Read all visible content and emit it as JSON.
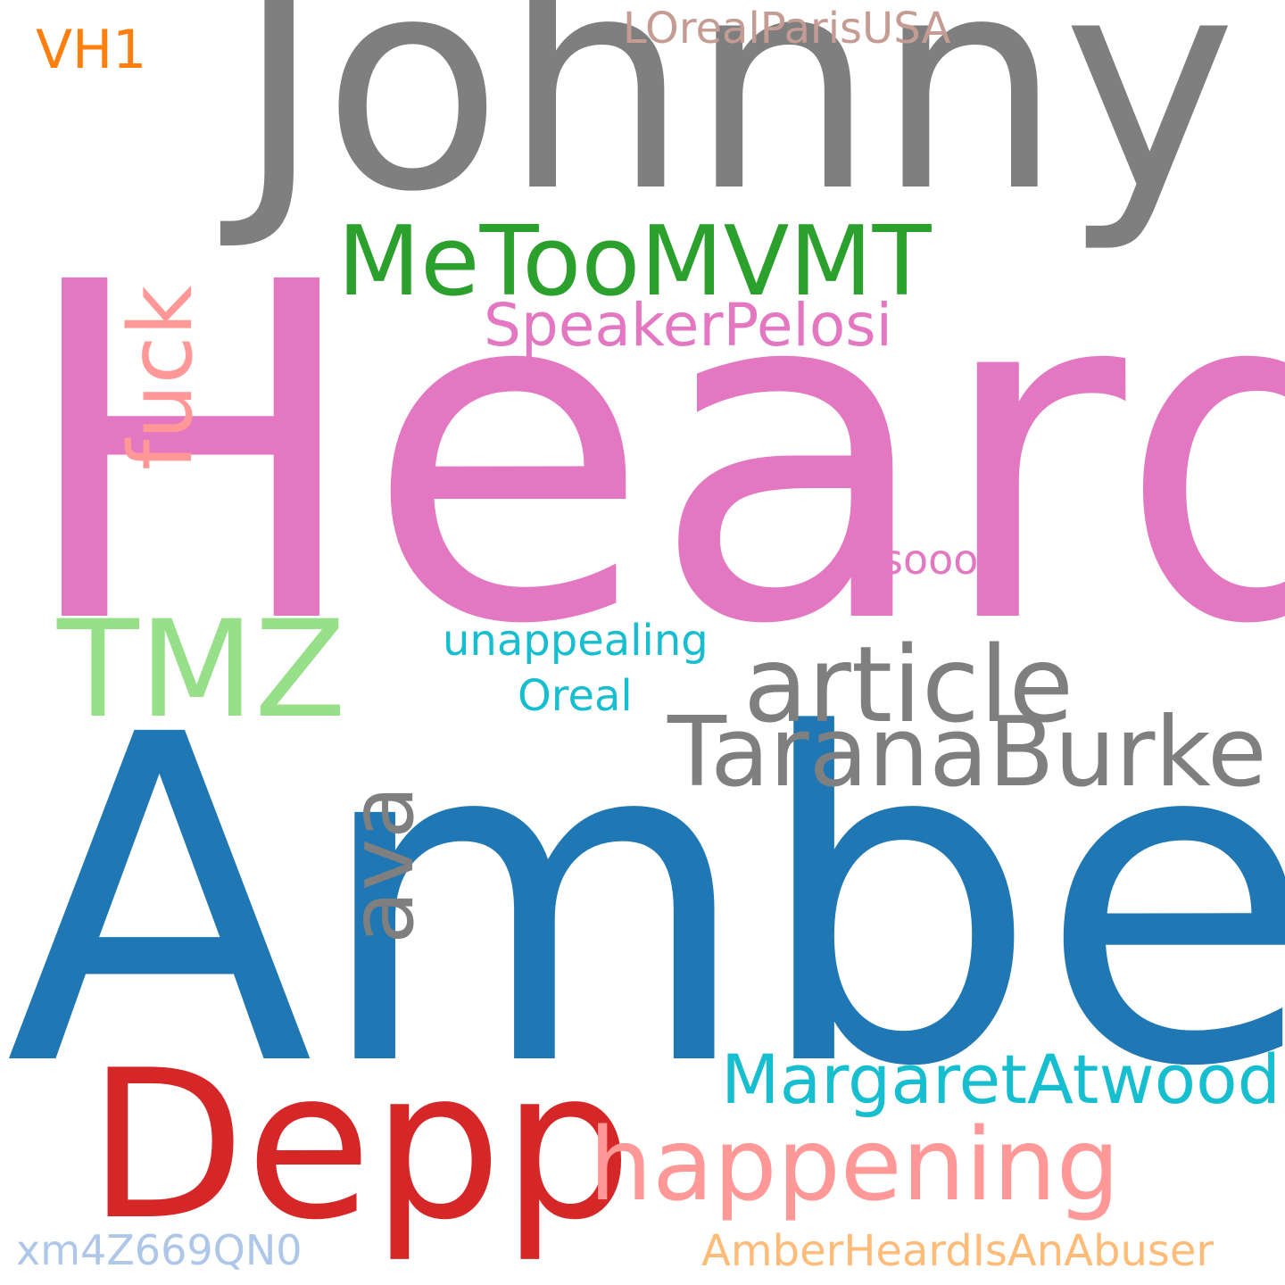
{
  "words": {
    "heard": {
      "text": "Heard",
      "color": "#e377c2"
    },
    "amber": {
      "text": "Amber",
      "color": "#1f77b4"
    },
    "johnny": {
      "text": "Johnny",
      "color": "#7f7f7f"
    },
    "depp": {
      "text": "Depp",
      "color": "#d62728"
    },
    "tmz": {
      "text": "TMZ",
      "color": "#98df8a"
    },
    "article": {
      "text": "article",
      "color": "#7f7f7f"
    },
    "tarana": {
      "text": "TaranaBurke",
      "color": "#7f7f7f"
    },
    "happening": {
      "text": "happening",
      "color": "#ff9896"
    },
    "metoo": {
      "text": "MeTooMVMT",
      "color": "#2ca02c"
    },
    "fuck": {
      "text": "fuck",
      "color": "#ff9896",
      "orientation": "vertical"
    },
    "ava": {
      "text": "ava",
      "color": "#7f7f7f",
      "orientation": "vertical"
    },
    "margaret": {
      "text": "MargaretAtwood",
      "color": "#17becf"
    },
    "speaker": {
      "text": "SpeakerPelosi",
      "color": "#e377c2"
    },
    "loreal": {
      "text": "LOrealParisUSA",
      "color": "#c49c94"
    },
    "vh1": {
      "text": "VH1",
      "color": "#ff7f0e"
    },
    "unapp": {
      "text": "unappealing",
      "color": "#17becf"
    },
    "oreal": {
      "text": "Oreal",
      "color": "#17becf"
    },
    "soooo": {
      "text": "soooo",
      "color": "#e377c2"
    },
    "xm4": {
      "text": "xm4Z669QN0",
      "color": "#aec7e8"
    },
    "abuser": {
      "text": "AmberHeardIsAnAbuser",
      "color": "#ffbb78"
    }
  }
}
